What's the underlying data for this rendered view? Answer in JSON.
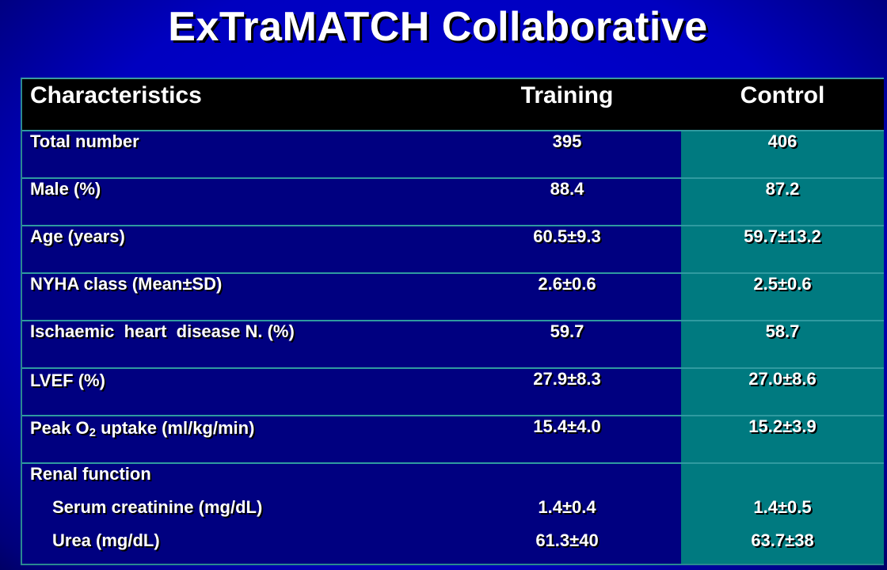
{
  "title": "ExTraMATCH Collaborative",
  "columns": [
    "Characteristics",
    "Training",
    "Control"
  ],
  "rows": [
    {
      "label": "Total number",
      "training": "395",
      "control": "406"
    },
    {
      "label": "Male (%)",
      "training": "88.4",
      "control": "87.2"
    },
    {
      "label": "Age (years)",
      "training": "60.5±9.3",
      "control": "59.7±13.2"
    },
    {
      "label": "NYHA class (Mean±SD)",
      "training": "2.6±0.6",
      "control": "2.5±0.6"
    },
    {
      "label": "Ischaemic  heart  disease N. (%)",
      "training": "59.7",
      "control": "58.7"
    },
    {
      "label": "LVEF (%)",
      "training": "27.9±8.3",
      "control": "27.0±8.6"
    },
    {
      "label_pre": "Peak O",
      "label_sub": "2",
      "label_post": " uptake (ml/kg/min)",
      "training": "15.4±4.0",
      "control": "15.2±3.9"
    }
  ],
  "renal": {
    "label": "Renal function",
    "items": [
      {
        "label": "Serum creatinine (mg/dL)",
        "training": "1.4±0.4",
        "control": "1.4±0.5"
      },
      {
        "label": "Urea (mg/dL)",
        "training": "61.3±40",
        "control": "63.7±38"
      }
    ]
  },
  "colors": {
    "table_bg": "#000080",
    "control_bg": "#007a80",
    "header_bg": "#000000",
    "grid": "#2f9aa0"
  }
}
